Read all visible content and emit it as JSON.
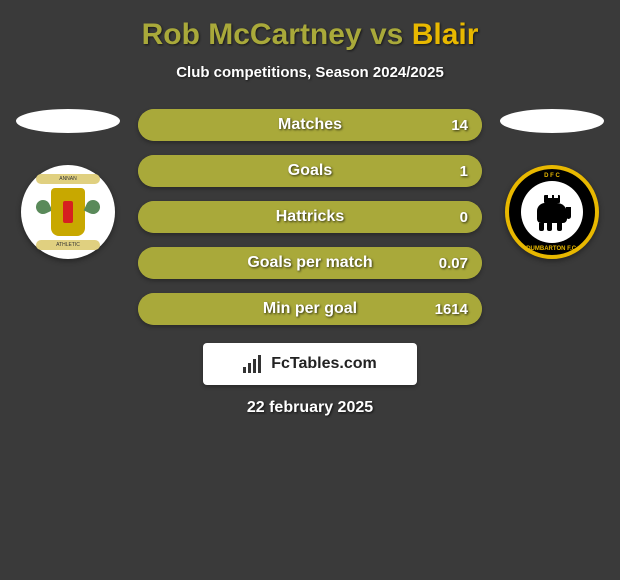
{
  "header": {
    "player_a": "Rob McCartney",
    "vs": " vs ",
    "player_b": "Blair",
    "title_color_a": "#a9a93a",
    "title_color_b": "#e8b800",
    "subtitle": "Club competitions, Season 2024/2025"
  },
  "clubs": {
    "left": {
      "name": "Annan Athletic",
      "top_text": "ANNAN",
      "bottom_text": "ATHLETIC"
    },
    "right": {
      "name": "Dumbarton FC",
      "top_text": "D F C",
      "bottom_text": "DUMBARTON F.C."
    }
  },
  "bars": {
    "left_color": "#a9a93a",
    "right_color": "#e8b800",
    "rows": [
      {
        "label": "Matches",
        "left": "",
        "right": "14",
        "left_pct": 0,
        "right_pct": 100
      },
      {
        "label": "Goals",
        "left": "",
        "right": "1",
        "left_pct": 0,
        "right_pct": 100
      },
      {
        "label": "Hattricks",
        "left": "",
        "right": "0",
        "left_pct": 0,
        "right_pct": 100
      },
      {
        "label": "Goals per match",
        "left": "",
        "right": "0.07",
        "left_pct": 0,
        "right_pct": 100
      },
      {
        "label": "Min per goal",
        "left": "",
        "right": "1614",
        "left_pct": 0,
        "right_pct": 100
      }
    ]
  },
  "brand": {
    "text": "FcTables.com"
  },
  "date": "22 february 2025"
}
